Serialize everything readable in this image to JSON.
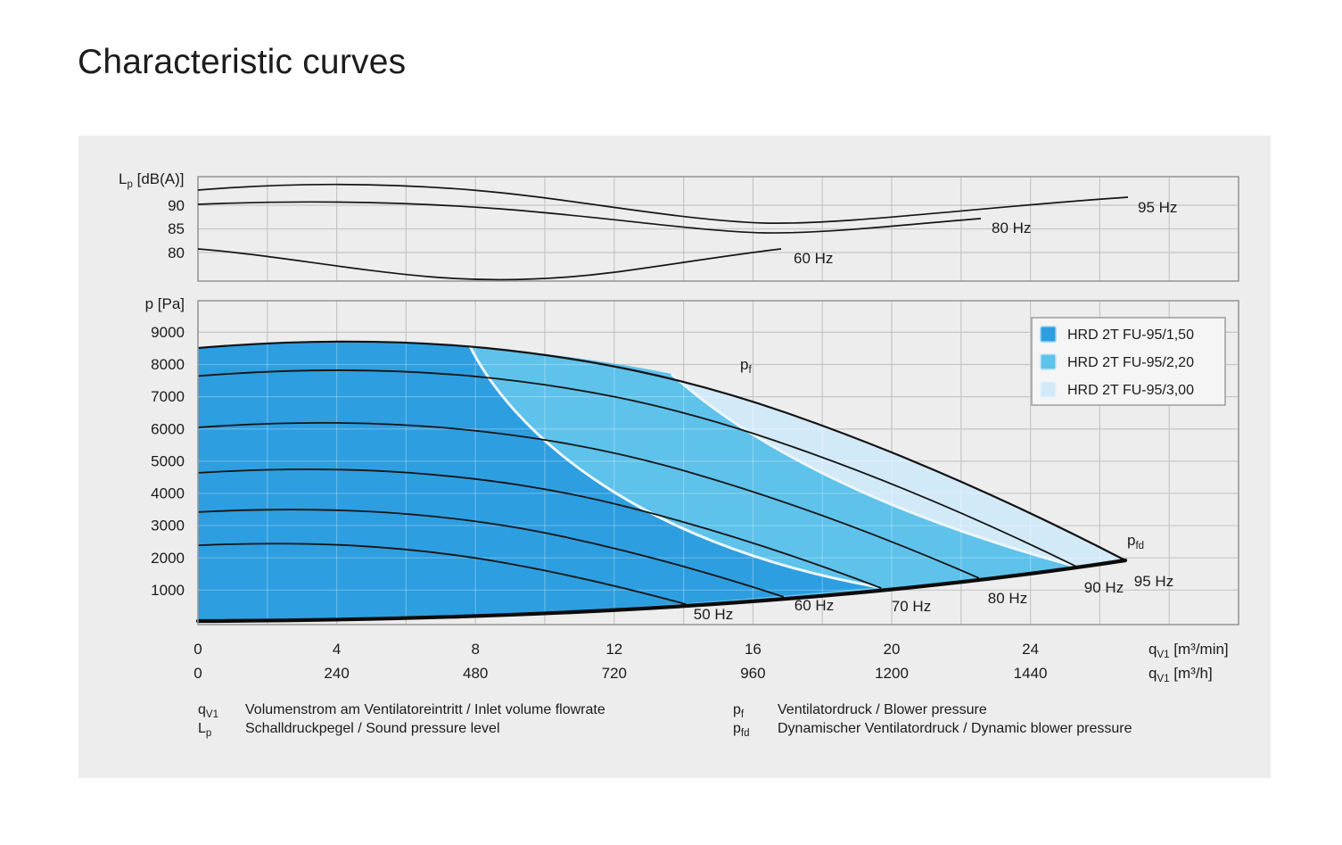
{
  "page": {
    "title": "Characteristic curves"
  },
  "chart_data": {
    "type": "line",
    "panel_bg": "#EDEDED",
    "top_chart": {
      "y_axis_label": {
        "base": "L",
        "sub": "p",
        "rest": " [dB(A)]"
      },
      "y_ticks": [
        "90",
        "85",
        "80"
      ],
      "y_unit": "dB(A)",
      "series": [
        {
          "label": "95 Hz",
          "q_m3min": [
            0,
            2,
            4,
            8,
            12,
            16,
            18,
            22,
            26.8
          ],
          "lp_dba": [
            93.2,
            94.3,
            94.0,
            92.3,
            89.8,
            87.0,
            86.3,
            88.8,
            91.9
          ]
        },
        {
          "label": "80 Hz",
          "q_m3min": [
            0,
            4,
            8,
            12,
            16,
            20,
            22.6
          ],
          "lp_dba": [
            90.2,
            90.8,
            89.2,
            86.8,
            84.3,
            85.8,
            87.2
          ]
        },
        {
          "label": "60 Hz",
          "q_m3min": [
            0,
            4,
            8,
            12,
            16.9
          ],
          "lp_dba": [
            80.8,
            77.6,
            74.5,
            76.6,
            80.8
          ]
        }
      ]
    },
    "main_chart": {
      "y_axis_label": "p [Pa]",
      "y_ticks": [
        "9000",
        "8000",
        "7000",
        "6000",
        "5000",
        "4000",
        "3000",
        "2000",
        "1000"
      ],
      "x_ticks_m3min": [
        "0",
        "4",
        "8",
        "12",
        "16",
        "20",
        "24"
      ],
      "x_ticks_m3h": [
        "0",
        "240",
        "480",
        "720",
        "960",
        "1200",
        "1440"
      ],
      "x_unit_m3min": {
        "base": "q",
        "sub": "V1",
        "rest": " [m³/min]"
      },
      "x_unit_m3h": {
        "base": "q",
        "sub": "V1",
        "rest": " [m³/h]"
      },
      "pf_label": {
        "base": "p",
        "sub": "f"
      },
      "pfd_label": {
        "base": "p",
        "sub": "fd"
      },
      "frequencies_hz": [
        50,
        60,
        70,
        80,
        90
      ],
      "hz_labels": [
        "50 Hz",
        "60 Hz",
        "70 Hz",
        "80 Hz",
        "90 Hz",
        "95 Hz"
      ],
      "envelope_95hz": {
        "q_m3min": [
          0,
          4,
          8,
          12,
          16,
          20,
          24,
          26.7
        ],
        "p_pa": [
          8500,
          8760,
          8540,
          7900,
          6900,
          5350,
          3530,
          1900
        ]
      },
      "pressure_at_q0_pa": {
        "50": 2350,
        "60": 3390,
        "70": 4610,
        "80": 6030,
        "90": 7630,
        "95": 8500
      },
      "curve_end_q_m3min": {
        "50": 14.1,
        "60": 16.9,
        "70": 19.7,
        "80": 22.5,
        "90": 25.3,
        "95": 26.7
      },
      "dynamic_pressure_pfd": {
        "q_m3min": [
          0,
          5,
          10,
          15,
          20,
          25,
          26.7
        ],
        "p_pa": [
          0,
          67,
          270,
          610,
          1080,
          1690,
          1920
        ]
      },
      "regions": [
        {
          "label": "HRD 2T FU-95/1,50",
          "color": "#2D9EE0",
          "max_q_m3min": 19.7
        },
        {
          "label": "HRD 2T FU-95/2,20",
          "color": "#5EC2EB",
          "max_q_m3min": 25.3
        },
        {
          "label": "HRD 2T FU-95/3,00",
          "color": "#D2E9F8",
          "max_q_m3min": 26.7
        }
      ]
    },
    "legend": {
      "position": "top-right",
      "entries": [
        "HRD 2T FU-95/1,50",
        "HRD 2T FU-95/2,20",
        "HRD 2T FU-95/3,00"
      ]
    }
  },
  "definitions": [
    {
      "sym": "q",
      "sub": "V1",
      "text": "Volumenstrom am Ventilatoreintritt / Inlet volume flowrate"
    },
    {
      "sym": "L",
      "sub": "p",
      "text": "Schalldruckpegel / Sound pressure level"
    },
    {
      "sym": "p",
      "sub": "f",
      "text": "Ventilatordruck / Blower pressure"
    },
    {
      "sym": "p",
      "sub": "fd",
      "text": "Dynamischer Ventilatordruck / Dynamic blower pressure"
    }
  ]
}
